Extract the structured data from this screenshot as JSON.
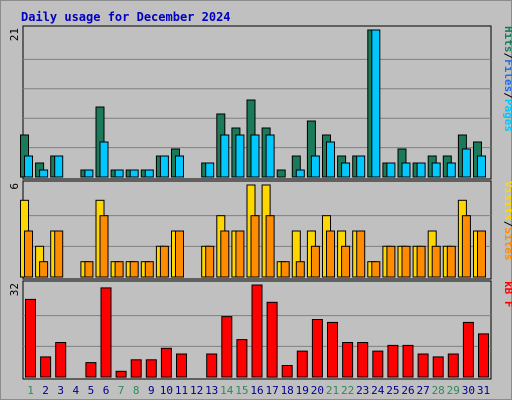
{
  "chart_data": {
    "type": "bar",
    "title": "Daily usage for December 2024",
    "days": [
      "1",
      "2",
      "3",
      "4",
      "5",
      "6",
      "7",
      "8",
      "9",
      "10",
      "11",
      "12",
      "13",
      "14",
      "15",
      "16",
      "17",
      "18",
      "19",
      "20",
      "21",
      "22",
      "23",
      "24",
      "25",
      "26",
      "27",
      "28",
      "29",
      "30",
      "31"
    ],
    "weekend_days": [
      "1",
      "7",
      "8",
      "14",
      "15",
      "21",
      "22",
      "28",
      "29"
    ],
    "colors": {
      "hits": "#1a7a5a",
      "files": "#00c8ff",
      "pages": "#00c8ff",
      "visits": "#ff8c00",
      "sites": "#ffd700",
      "kbf": "#ff0000",
      "weekday_label": "#00008b",
      "weekend_label": "#2e8b57",
      "title": "#0000c0"
    },
    "panels": [
      {
        "id": "hits-files-pages",
        "max_label": "21",
        "ylim": [
          0,
          21
        ],
        "legend": [
          {
            "text": "Hits",
            "color": "#1a7a5a"
          },
          {
            "text": "/",
            "color": "#000000"
          },
          {
            "text": "Files",
            "color": "#1e6ee6"
          },
          {
            "text": "/",
            "color": "#000000"
          },
          {
            "text": "Pages",
            "color": "#00c8ff"
          }
        ],
        "series": [
          {
            "name": "Hits",
            "values": [
              6,
              2,
              3,
              0,
              1,
              10,
              1,
              1,
              1,
              3,
              4,
              0,
              2,
              9,
              7,
              11,
              7,
              1,
              3,
              8,
              6,
              3,
              3,
              21,
              2,
              4,
              2,
              3,
              3,
              6,
              5
            ]
          },
          {
            "name": "Files",
            "values": [
              3,
              1,
              3,
              0,
              1,
              5,
              1,
              1,
              1,
              3,
              3,
              0,
              2,
              6,
              6,
              6,
              6,
              0,
              1,
              3,
              5,
              2,
              3,
              21,
              2,
              2,
              2,
              2,
              2,
              4,
              3
            ]
          }
        ]
      },
      {
        "id": "visits-sites",
        "max_label": "6",
        "ylim": [
          0,
          6
        ],
        "legend": [
          {
            "text": "Visits",
            "color": "#ffd700"
          },
          {
            "text": "/",
            "color": "#000000"
          },
          {
            "text": "Sites",
            "color": "#ff8c00"
          }
        ],
        "series": [
          {
            "name": "Visits",
            "values": [
              5,
              2,
              3,
              0,
              1,
              5,
              1,
              1,
              1,
              2,
              3,
              0,
              2,
              4,
              3,
              6,
              6,
              1,
              3,
              3,
              4,
              3,
              3,
              1,
              2,
              2,
              2,
              3,
              2,
              5,
              3
            ]
          },
          {
            "name": "Sites",
            "values": [
              3,
              1,
              3,
              0,
              1,
              4,
              1,
              1,
              1,
              2,
              3,
              0,
              2,
              3,
              3,
              4,
              4,
              1,
              1,
              2,
              3,
              2,
              3,
              1,
              2,
              2,
              2,
              2,
              2,
              4,
              3
            ]
          }
        ]
      },
      {
        "id": "kbf",
        "max_label": "32",
        "ylim": [
          0,
          32
        ],
        "legend": [
          {
            "text": "kB F",
            "color": "#ff0000"
          }
        ],
        "series": [
          {
            "name": "kB F",
            "values": [
              27,
              7,
              12,
              0,
              5,
              31,
              2,
              6,
              6,
              10,
              8,
              0,
              8,
              21,
              13,
              32,
              26,
              4,
              9,
              20,
              19,
              12,
              12,
              9,
              11,
              11,
              8,
              7,
              8,
              19,
              15
            ]
          }
        ]
      }
    ]
  }
}
